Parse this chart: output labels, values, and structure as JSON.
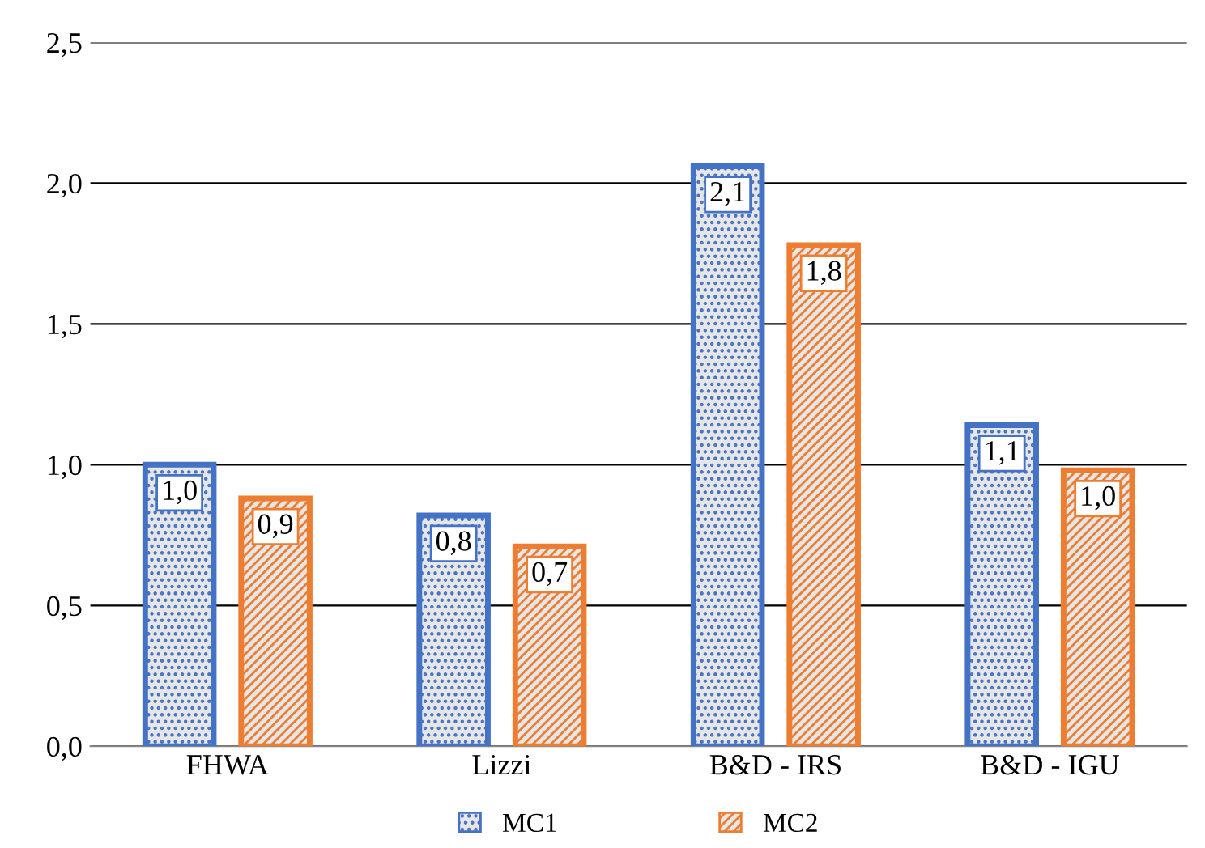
{
  "chart_data": {
    "type": "bar",
    "categories": [
      "FHWA",
      "Lizzi",
      "B&D - IRS",
      "B&D - IGU"
    ],
    "series": [
      {
        "name": "MC1",
        "color": "#4472c4",
        "values": [
          1.0,
          0.82,
          2.06,
          1.14
        ],
        "value_labels": [
          "1,0",
          "0,8",
          "2,1",
          "1,1"
        ]
      },
      {
        "name": "MC2",
        "color": "#ed7d31",
        "values": [
          0.88,
          0.71,
          1.78,
          0.98
        ],
        "value_labels": [
          "0,9",
          "0,7",
          "1,8",
          "1,0"
        ]
      }
    ],
    "ylim": [
      0,
      2.5
    ],
    "yticks": [
      {
        "value": 0,
        "label": "0,0"
      },
      {
        "value": 0.5,
        "label": "0,5"
      },
      {
        "value": 1.0,
        "label": "1,0"
      },
      {
        "value": 1.5,
        "label": "1,5"
      },
      {
        "value": 2.0,
        "label": "2,0"
      },
      {
        "value": 2.5,
        "label": "2,5"
      }
    ],
    "grid": "y",
    "legend": "bottom"
  }
}
